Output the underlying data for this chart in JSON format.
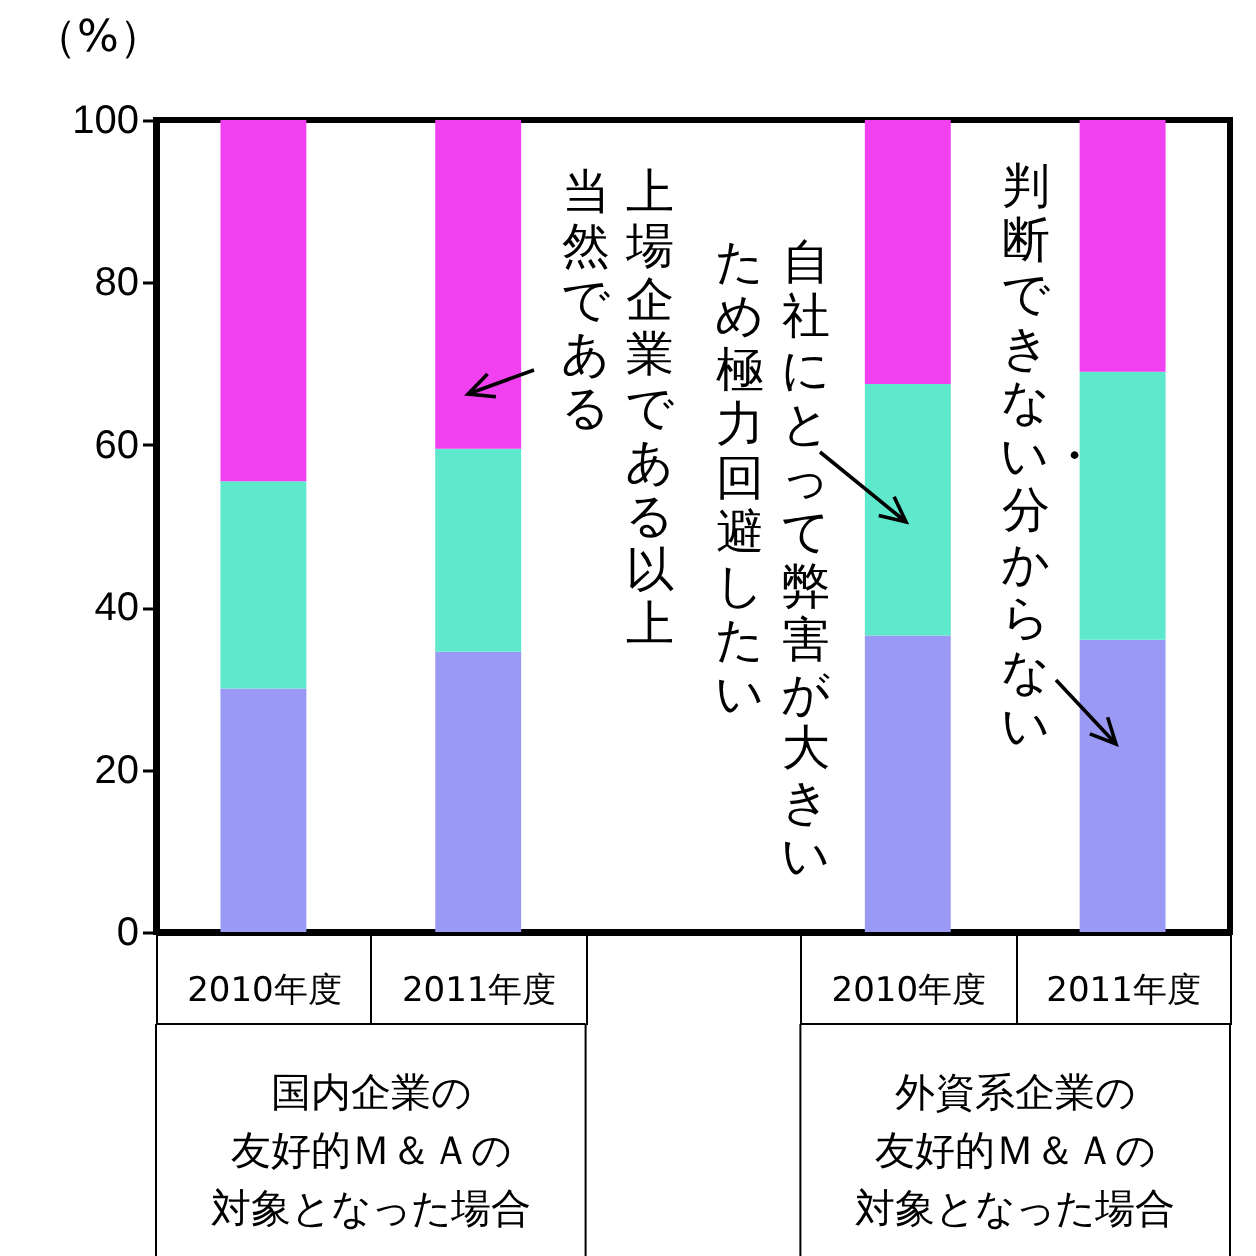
{
  "chart_data": {
    "type": "bar",
    "stacked": true,
    "ylabel": "（%）",
    "categories": [
      "2010年度",
      "2011年度",
      null,
      "2010年度",
      "2011年度"
    ],
    "series": [
      {
        "name": "判断できない・分からない",
        "color": "#9a9af5",
        "values": [
          30,
          34.5,
          null,
          36.5,
          36
        ]
      },
      {
        "name": "自社にとって弊害が大きいため極力回避したい",
        "color": "#5ee8cc",
        "values": [
          25.5,
          25,
          null,
          31,
          33
        ]
      },
      {
        "name": "上場企業である以上当然である",
        "color": "#f040f0",
        "values": [
          44.5,
          40.5,
          null,
          32.5,
          31
        ]
      }
    ],
    "ylim": [
      0,
      100
    ],
    "yticks": [
      0,
      20,
      40,
      60,
      80,
      100
    ],
    "grid": false,
    "legend": false,
    "annotations": [
      "国内企業の友好的Ｍ＆Ａの対象となった場合",
      "外資系企業の友好的Ｍ＆Ａの対象となった場合"
    ]
  }
}
